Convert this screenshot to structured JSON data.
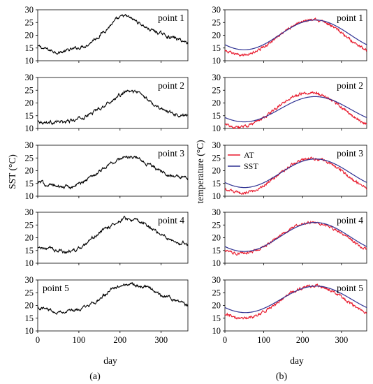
{
  "chart_data": {
    "type": "line",
    "panels": [
      "(a)",
      "(b)"
    ],
    "xlabel": "day",
    "xlim": [
      0,
      365
    ],
    "xticks": [
      0,
      100,
      200,
      300
    ],
    "ylabel_left": "SST (°C)",
    "ylabel_right": "temperature (°C)",
    "legend": {
      "location": "point 3 panel (b), top-left",
      "entries": [
        {
          "name": "AT",
          "color": "#e8192c"
        },
        {
          "name": "SST",
          "color": "#2e3192"
        }
      ]
    },
    "rows": [
      {
        "label": "point 1",
        "ylim": [
          10,
          30
        ],
        "yticks": [
          10,
          15,
          20,
          25,
          30
        ],
        "sst_series": {
          "name": "SST",
          "x": [
            0,
            30,
            60,
            90,
            120,
            150,
            180,
            210,
            240,
            270,
            300,
            330,
            365
          ],
          "y": [
            15.5,
            14,
            13.5,
            14.5,
            16.5,
            20,
            24.5,
            27.5,
            25.5,
            22.5,
            20.5,
            19,
            17
          ]
        },
        "model": {
          "at": {
            "min": 12.3,
            "max": 26.0,
            "peak": 225
          },
          "sst": {
            "min": 14.3,
            "max": 26.0,
            "peak": 232
          }
        }
      },
      {
        "label": "point 2",
        "ylim": [
          10,
          30
        ],
        "yticks": [
          10,
          15,
          20,
          25,
          30
        ],
        "sst_series": {
          "name": "SST",
          "x": [
            0,
            30,
            60,
            90,
            120,
            150,
            180,
            210,
            240,
            270,
            300,
            330,
            365
          ],
          "y": [
            13,
            12.5,
            12.5,
            13,
            15,
            18,
            21,
            24,
            24.5,
            21,
            18,
            16,
            15
          ]
        },
        "model": {
          "at": {
            "min": 10.5,
            "max": 24.0,
            "peak": 218
          },
          "sst": {
            "min": 12.6,
            "max": 22.5,
            "peak": 232
          }
        }
      },
      {
        "label": "point 3",
        "ylim": [
          10,
          30
        ],
        "yticks": [
          10,
          15,
          20,
          25,
          30
        ],
        "sst_series": {
          "name": "SST",
          "x": [
            0,
            30,
            60,
            90,
            120,
            150,
            180,
            210,
            240,
            270,
            300,
            330,
            365
          ],
          "y": [
            15.5,
            14.5,
            13.5,
            14,
            16.5,
            20,
            23,
            25.5,
            25,
            22.5,
            19.5,
            18,
            17
          ]
        },
        "model": {
          "at": {
            "min": 11.3,
            "max": 24.8,
            "peak": 225
          },
          "sst": {
            "min": 13.4,
            "max": 24.6,
            "peak": 233
          }
        }
      },
      {
        "label": "point 4",
        "ylim": [
          10,
          30
        ],
        "yticks": [
          10,
          15,
          20,
          25,
          30
        ],
        "sst_series": {
          "name": "SST",
          "x": [
            0,
            30,
            60,
            90,
            120,
            150,
            180,
            210,
            240,
            270,
            300,
            330,
            365
          ],
          "y": [
            16,
            15.5,
            14.5,
            15,
            17,
            22,
            25,
            27.5,
            26.5,
            24.5,
            21.5,
            19,
            17.5
          ]
        },
        "model": {
          "at": {
            "min": 13.8,
            "max": 26.0,
            "peak": 225
          },
          "sst": {
            "min": 14.6,
            "max": 26.0,
            "peak": 232
          }
        }
      },
      {
        "label": "point 5",
        "ylim": [
          10,
          30
        ],
        "yticks": [
          10,
          15,
          20,
          25,
          30
        ],
        "sst_series": {
          "name": "SST",
          "x": [
            0,
            30,
            60,
            90,
            120,
            150,
            180,
            210,
            240,
            270,
            300,
            330,
            365
          ],
          "y": [
            19.5,
            18.5,
            17.5,
            18,
            19,
            22.5,
            26,
            28.5,
            28,
            27.5,
            24,
            22,
            19.5
          ]
        },
        "model": {
          "at": {
            "min": 15.0,
            "max": 27.7,
            "peak": 228
          },
          "sst": {
            "min": 17.2,
            "max": 27.6,
            "peak": 235
          }
        }
      }
    ]
  }
}
